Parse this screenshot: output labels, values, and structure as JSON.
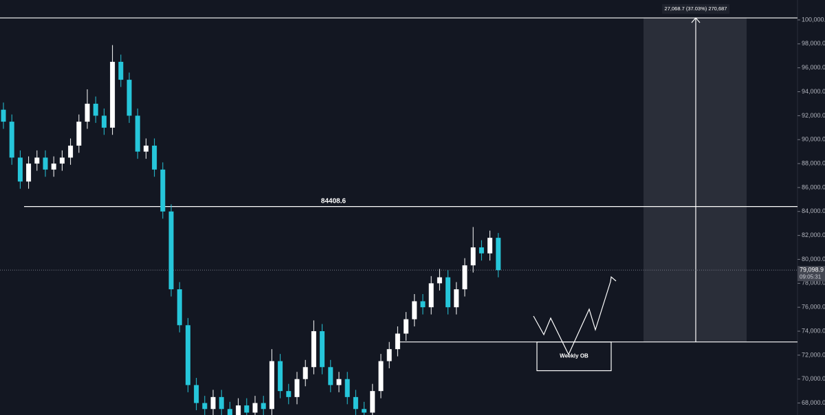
{
  "chart_data": {
    "type": "candlestick",
    "up_color": "#ffffff",
    "down_color": "#26c6da",
    "open": [
      92500,
      91500,
      88500,
      86500,
      88000,
      88500,
      87500,
      88000,
      88500,
      89500,
      91500,
      93000,
      92000,
      91000,
      96500,
      95000,
      92000,
      89000,
      89500,
      87500,
      84000,
      77500,
      74500,
      69500,
      68000,
      67500,
      68500,
      67500,
      67000,
      67800,
      67200,
      68000,
      67500,
      71500,
      69000,
      68500,
      70000,
      71000,
      74000,
      71000,
      69500,
      70000,
      68500,
      67500,
      67200,
      69000,
      71500,
      72500,
      73800,
      75000,
      76500,
      76000,
      78000,
      78500,
      76000,
      77500,
      79500,
      81000,
      80500,
      81800
    ],
    "high": [
      93100,
      92100,
      89100,
      88600,
      89100,
      89100,
      88600,
      89100,
      90100,
      92100,
      94200,
      93600,
      92600,
      97900,
      97100,
      95600,
      92600,
      90100,
      90100,
      88100,
      84600,
      78100,
      75100,
      70100,
      68600,
      69100,
      69100,
      68100,
      68400,
      68400,
      68600,
      68600,
      72500,
      72100,
      69600,
      70600,
      71600,
      74900,
      74600,
      71600,
      70600,
      70600,
      69100,
      68100,
      69600,
      72100,
      73100,
      74400,
      75600,
      77100,
      77100,
      78600,
      79200,
      79100,
      78100,
      80100,
      82700,
      81600,
      82400,
      82200
    ],
    "low": [
      90900,
      87900,
      85900,
      85900,
      87400,
      86900,
      86900,
      87400,
      87900,
      88900,
      90900,
      91400,
      90400,
      90400,
      94400,
      91400,
      88400,
      88400,
      86900,
      83400,
      76900,
      73900,
      68900,
      67400,
      66900,
      66900,
      66900,
      66400,
      66400,
      66600,
      66600,
      66900,
      66900,
      68400,
      67900,
      67900,
      69400,
      70400,
      70400,
      68900,
      68900,
      67900,
      66900,
      66600,
      66600,
      68400,
      70900,
      71900,
      73200,
      74400,
      75400,
      75400,
      77400,
      75400,
      75400,
      76900,
      78900,
      79900,
      79900,
      78500
    ],
    "close": [
      91500,
      88500,
      86500,
      88000,
      88500,
      87500,
      88000,
      88500,
      89500,
      91500,
      93000,
      92000,
      91000,
      96500,
      95000,
      92000,
      89000,
      89500,
      87500,
      84000,
      77500,
      74500,
      69500,
      68000,
      67500,
      68500,
      67500,
      67000,
      67800,
      67200,
      68000,
      67500,
      71500,
      69000,
      68500,
      70000,
      71000,
      74000,
      71000,
      69500,
      70000,
      68500,
      67500,
      67200,
      69000,
      71500,
      72500,
      73800,
      75000,
      76500,
      76000,
      78000,
      78500,
      76000,
      77500,
      79500,
      81000,
      80500,
      81800,
      79098.9
    ],
    "ylim": [
      67000,
      101663
    ],
    "yticks": [
      {
        "value": 68000,
        "label": "68,000.0"
      },
      {
        "value": 70000,
        "label": "70,000.0"
      },
      {
        "value": 72000,
        "label": "72,000.0"
      },
      {
        "value": 74000,
        "label": "74,000.0"
      },
      {
        "value": 76000,
        "label": "76,000.0"
      },
      {
        "value": 78000,
        "label": "78,000.0"
      },
      {
        "value": 80000,
        "label": "80,000.0"
      },
      {
        "value": 82000,
        "label": "82,000.0"
      },
      {
        "value": 84000,
        "label": "84,000.0"
      },
      {
        "value": 86000,
        "label": "86,000.0"
      },
      {
        "value": 88000,
        "label": "88,000.0"
      },
      {
        "value": 90000,
        "label": "90,000.0"
      },
      {
        "value": 92000,
        "label": "92,000.0"
      },
      {
        "value": 94000,
        "label": "94,000.0"
      },
      {
        "value": 96000,
        "label": "96,000.0"
      },
      {
        "value": 98000,
        "label": "98,000.0"
      },
      {
        "value": 100000,
        "label": "100,000.0"
      }
    ],
    "level": 84408.6,
    "current_price": {
      "value": 79098.9,
      "label": "79,098.9"
    },
    "countdown": "09:05:31",
    "measure": {
      "low": 73100,
      "high": 100168.7,
      "label": "27,068.7 (37.03%) 270,687"
    },
    "order_block": {
      "top": 73100,
      "bottom": 70700,
      "label": "Weekly OB"
    }
  }
}
